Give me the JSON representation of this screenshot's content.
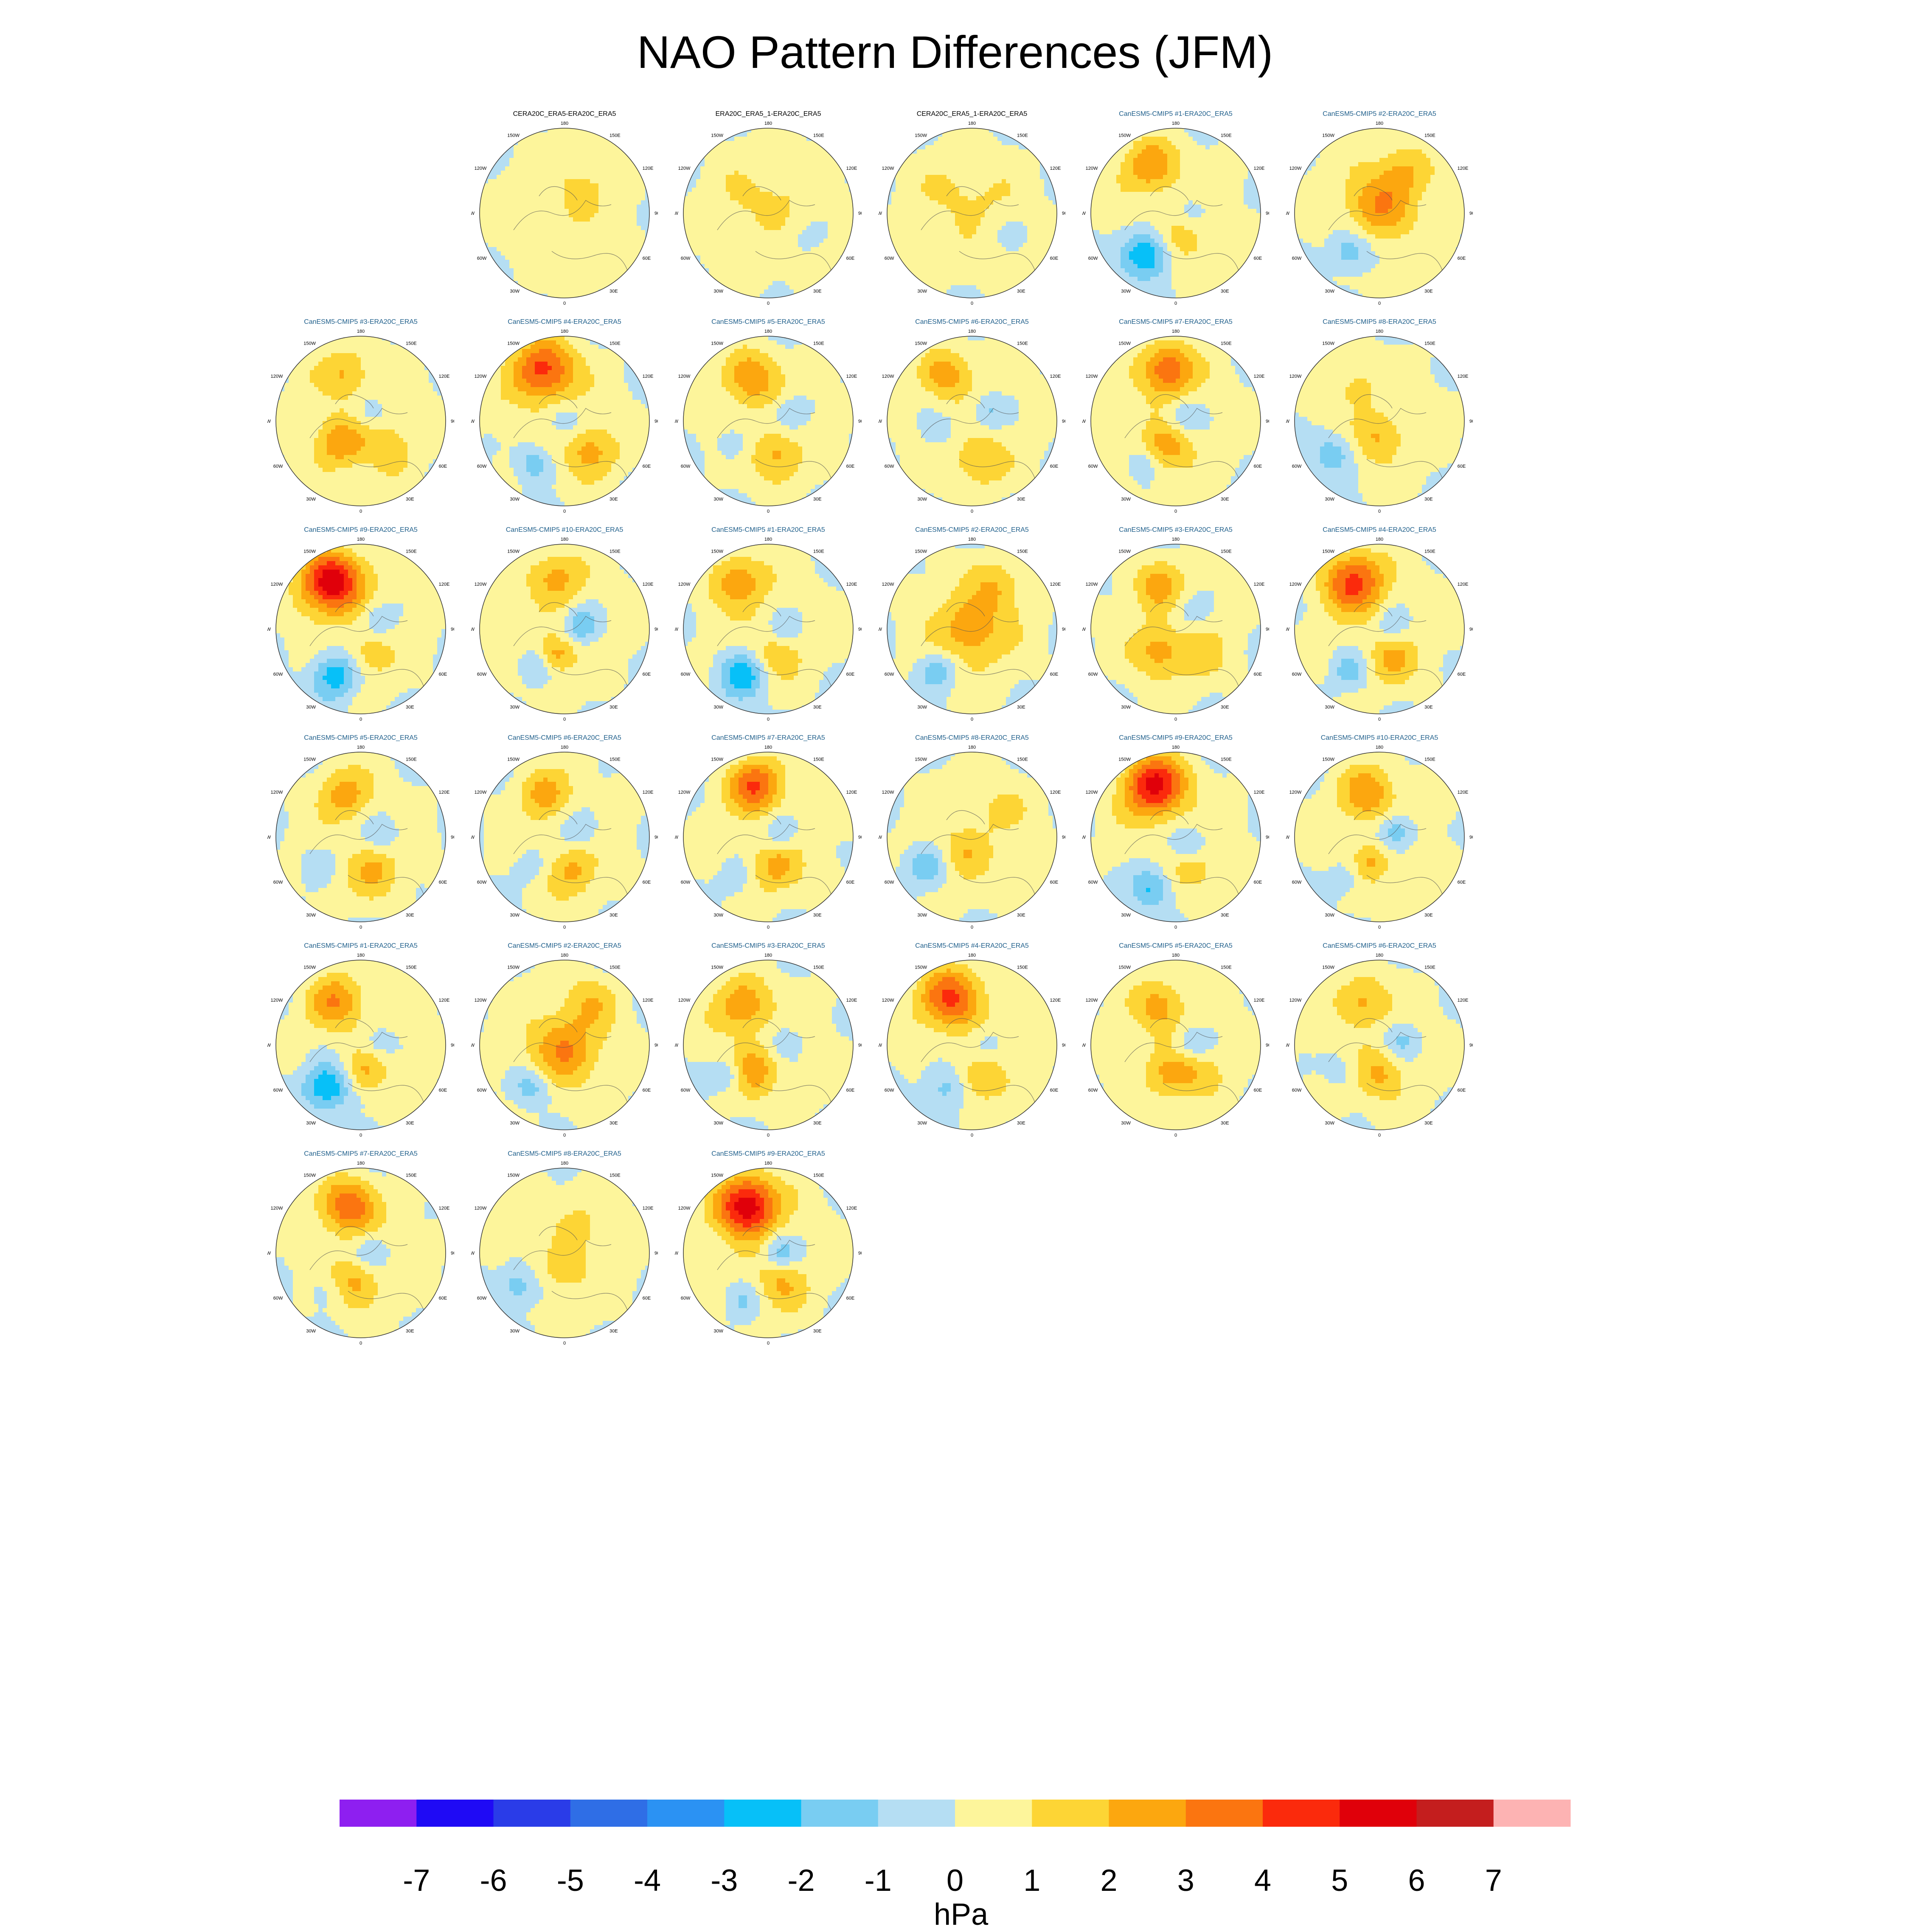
{
  "title": "NAO Pattern Differences (JFM)",
  "colorbar": {
    "unit": "hPa",
    "ticks": [
      "-7",
      "-6",
      "-5",
      "-4",
      "-3",
      "-2",
      "-1",
      "0",
      "1",
      "2",
      "3",
      "4",
      "5",
      "6",
      "7"
    ],
    "colors": [
      "#8e1ff0",
      "#1f0af5",
      "#2a3ce8",
      "#2f6ee6",
      "#2b92f3",
      "#07c0f8",
      "#79cdf2",
      "#b5def3",
      "#fdf59b",
      "#fdd535",
      "#fca70f",
      "#fb7510",
      "#fb2a0c",
      "#e0000a",
      "#c41e1e",
      "#fdb3b3"
    ]
  },
  "chart_data": {
    "type": "heatmap",
    "title": "NAO Pattern Differences (JFM)",
    "variable": "NAO pattern difference",
    "units": "hPa",
    "color_range": [
      -8,
      8
    ],
    "color_levels": [
      -7,
      -6,
      -5,
      -4,
      -3,
      -2,
      -1,
      0,
      1,
      2,
      3,
      4,
      5,
      6,
      7
    ],
    "projection": "North polar stereographic",
    "longitude_labels": [
      "180",
      "150E",
      "120E",
      "90E",
      "60E",
      "30E",
      "0",
      "30W",
      "60W",
      "90W",
      "120W",
      "150W"
    ],
    "panels": [
      {
        "title": "CERA20C_ERA5-ERA20C_ERA5",
        "kind": "obs",
        "blobs": [
          [
            0.2,
            -0.3,
            0.25,
            0.8
          ],
          [
            -0.3,
            0.1,
            0.22,
            0.6
          ],
          [
            0.1,
            0.45,
            0.18,
            0.5
          ]
        ]
      },
      {
        "title": "ERA20C_ERA5_1-ERA20C_ERA5",
        "kind": "obs",
        "blobs": [
          [
            0.1,
            -0.1,
            0.3,
            0.7
          ],
          [
            -0.35,
            -0.2,
            0.2,
            0.5
          ],
          [
            0.4,
            0.3,
            0.2,
            -0.6
          ]
        ]
      },
      {
        "title": "CERA20C_ERA5_1-ERA20C_ERA5",
        "kind": "obs",
        "blobs": [
          [
            0.1,
            -0.1,
            0.3,
            0.7
          ],
          [
            -0.3,
            -0.3,
            0.2,
            0.6
          ],
          [
            0.45,
            0.2,
            0.18,
            -0.6
          ]
        ]
      },
      {
        "title": "CanESM5-CMIP5 #1-ERA20C_ERA5",
        "kind": "model",
        "blobs": [
          [
            -0.3,
            -0.55,
            0.22,
            2.5
          ],
          [
            -0.35,
            0.5,
            0.2,
            -3.5
          ],
          [
            0.1,
            0.3,
            0.2,
            1.5
          ],
          [
            0.2,
            0.0,
            0.15,
            -1.2
          ]
        ]
      },
      {
        "title": "CanESM5-CMIP5 #2-ERA20C_ERA5",
        "kind": "model",
        "blobs": [
          [
            0.0,
            -0.1,
            0.28,
            2.5
          ],
          [
            -0.35,
            0.45,
            0.18,
            -2.2
          ],
          [
            0.3,
            -0.5,
            0.2,
            1.5
          ]
        ]
      },
      {
        "title": "CanESM5-CMIP5 #3-ERA20C_ERA5",
        "kind": "model",
        "blobs": [
          [
            -0.2,
            -0.55,
            0.2,
            1.8
          ],
          [
            -0.25,
            0.25,
            0.2,
            2.4
          ],
          [
            0.3,
            0.3,
            0.2,
            1.5
          ],
          [
            0.1,
            -0.1,
            0.15,
            -1.0
          ]
        ]
      },
      {
        "title": "CanESM5-CMIP5 #4-ERA20C_ERA5",
        "kind": "model",
        "blobs": [
          [
            -0.25,
            -0.6,
            0.26,
            4.0
          ],
          [
            0.3,
            0.35,
            0.2,
            2.2
          ],
          [
            -0.35,
            0.5,
            0.15,
            -2.0
          ],
          [
            0.0,
            0.0,
            0.15,
            -1.2
          ]
        ]
      },
      {
        "title": "CanESM5-CMIP5 #5-ERA20C_ERA5",
        "kind": "model",
        "blobs": [
          [
            -0.2,
            -0.5,
            0.22,
            2.5
          ],
          [
            0.1,
            0.4,
            0.2,
            2.0
          ],
          [
            0.25,
            -0.1,
            0.15,
            -1.5
          ],
          [
            -0.4,
            0.3,
            0.15,
            -1.2
          ]
        ]
      },
      {
        "title": "CanESM5-CMIP5 #6-ERA20C_ERA5",
        "kind": "model",
        "blobs": [
          [
            -0.3,
            -0.55,
            0.2,
            2.2
          ],
          [
            0.1,
            0.45,
            0.2,
            1.8
          ],
          [
            0.2,
            -0.1,
            0.15,
            -1.5
          ],
          [
            -0.4,
            0.1,
            0.15,
            -1.0
          ]
        ]
      },
      {
        "title": "CanESM5-CMIP5 #7-ERA20C_ERA5",
        "kind": "model",
        "blobs": [
          [
            -0.1,
            -0.6,
            0.22,
            3.5
          ],
          [
            -0.1,
            0.3,
            0.2,
            2.2
          ],
          [
            0.1,
            -0.05,
            0.15,
            -1.5
          ],
          [
            -0.4,
            0.5,
            0.15,
            -1.2
          ]
        ]
      },
      {
        "title": "CanESM5-CMIP5 #8-ERA20C_ERA5",
        "kind": "model",
        "blobs": [
          [
            -0.55,
            0.4,
            0.18,
            -2.0
          ],
          [
            0.0,
            0.2,
            0.2,
            1.8
          ],
          [
            -0.3,
            -0.4,
            0.2,
            1.0
          ]
        ]
      },
      {
        "title": "CanESM5-CMIP5 #9-ERA20C_ERA5",
        "kind": "model",
        "blobs": [
          [
            -0.35,
            -0.55,
            0.25,
            5.5
          ],
          [
            -0.3,
            0.55,
            0.2,
            -3.0
          ],
          [
            0.1,
            0.3,
            0.18,
            1.5
          ],
          [
            0.2,
            -0.1,
            0.15,
            -1.2
          ]
        ]
      },
      {
        "title": "CanESM5-CMIP5 #10-ERA20C_ERA5",
        "kind": "model",
        "blobs": [
          [
            -0.1,
            -0.6,
            0.22,
            2.0
          ],
          [
            0.2,
            -0.05,
            0.15,
            -2.2
          ],
          [
            -0.1,
            0.3,
            0.15,
            2.2
          ],
          [
            -0.35,
            0.45,
            0.15,
            -1.5
          ]
        ]
      },
      {
        "title": "CanESM5-CMIP5 #1-ERA20C_ERA5",
        "kind": "model",
        "blobs": [
          [
            -0.35,
            -0.55,
            0.22,
            2.5
          ],
          [
            -0.3,
            0.55,
            0.2,
            -3.0
          ],
          [
            0.1,
            0.3,
            0.2,
            1.5
          ],
          [
            0.2,
            0.0,
            0.15,
            -1.2
          ]
        ]
      },
      {
        "title": "CanESM5-CMIP5 #2-ERA20C_ERA5",
        "kind": "model",
        "blobs": [
          [
            0.0,
            0.0,
            0.28,
            2.4
          ],
          [
            -0.4,
            0.5,
            0.16,
            -2.0
          ],
          [
            0.3,
            -0.5,
            0.2,
            1.4
          ]
        ]
      },
      {
        "title": "CanESM5-CMIP5 #3-ERA20C_ERA5",
        "kind": "model",
        "blobs": [
          [
            -0.2,
            -0.5,
            0.2,
            2.0
          ],
          [
            -0.2,
            0.25,
            0.2,
            2.2
          ],
          [
            0.2,
            -0.2,
            0.15,
            -1.0
          ],
          [
            0.3,
            0.3,
            0.2,
            1.2
          ]
        ]
      },
      {
        "title": "CanESM5-CMIP5 #4-ERA20C_ERA5",
        "kind": "model",
        "blobs": [
          [
            -0.3,
            -0.55,
            0.25,
            4.0
          ],
          [
            -0.35,
            0.5,
            0.16,
            -1.8
          ],
          [
            0.15,
            0.35,
            0.2,
            1.8
          ],
          [
            0.15,
            -0.05,
            0.15,
            -1.2
          ]
        ]
      },
      {
        "title": "CanESM5-CMIP5 #5-ERA20C_ERA5",
        "kind": "model",
        "blobs": [
          [
            -0.2,
            -0.5,
            0.2,
            2.2
          ],
          [
            0.15,
            0.4,
            0.2,
            1.8
          ],
          [
            0.25,
            -0.05,
            0.15,
            -1.4
          ],
          [
            -0.5,
            0.3,
            0.15,
            -1.0
          ]
        ]
      },
      {
        "title": "CanESM5-CMIP5 #6-ERA20C_ERA5",
        "kind": "model",
        "blobs": [
          [
            -0.25,
            -0.5,
            0.2,
            2.0
          ],
          [
            0.1,
            0.4,
            0.2,
            1.8
          ],
          [
            0.2,
            -0.1,
            0.15,
            -1.5
          ],
          [
            -0.4,
            0.35,
            0.15,
            -1.0
          ]
        ]
      },
      {
        "title": "CanESM5-CMIP5 #7-ERA20C_ERA5",
        "kind": "model",
        "blobs": [
          [
            -0.15,
            -0.6,
            0.22,
            3.6
          ],
          [
            0.1,
            0.35,
            0.2,
            2.0
          ],
          [
            0.15,
            -0.05,
            0.15,
            -1.5
          ],
          [
            -0.4,
            0.5,
            0.15,
            -1.2
          ]
        ]
      },
      {
        "title": "CanESM5-CMIP5 #8-ERA20C_ERA5",
        "kind": "model",
        "blobs": [
          [
            -0.55,
            0.35,
            0.18,
            -2.0
          ],
          [
            -0.1,
            0.2,
            0.2,
            1.5
          ],
          [
            0.3,
            -0.3,
            0.2,
            1.0
          ]
        ]
      },
      {
        "title": "CanESM5-CMIP5 #9-ERA20C_ERA5",
        "kind": "model",
        "blobs": [
          [
            -0.25,
            -0.6,
            0.25,
            5.0
          ],
          [
            -0.3,
            0.6,
            0.18,
            -2.5
          ],
          [
            0.15,
            0.1,
            0.15,
            -1.8
          ],
          [
            0.2,
            0.35,
            0.18,
            1.5
          ]
        ]
      },
      {
        "title": "CanESM5-CMIP5 #10-ERA20C_ERA5",
        "kind": "model",
        "blobs": [
          [
            -0.15,
            -0.5,
            0.22,
            2.4
          ],
          [
            0.2,
            -0.05,
            0.15,
            -2.2
          ],
          [
            -0.1,
            0.3,
            0.15,
            1.8
          ],
          [
            -0.4,
            0.5,
            0.15,
            -1.2
          ]
        ]
      },
      {
        "title": "CanESM5-CMIP5 #1-ERA20C_ERA5",
        "kind": "model",
        "blobs": [
          [
            -0.3,
            -0.5,
            0.22,
            2.5
          ],
          [
            -0.4,
            0.5,
            0.2,
            -3.5
          ],
          [
            0.05,
            0.3,
            0.18,
            1.8
          ],
          [
            0.2,
            0.0,
            0.15,
            -1.2
          ]
        ]
      },
      {
        "title": "CanESM5-CMIP5 #2-ERA20C_ERA5",
        "kind": "model",
        "blobs": [
          [
            0.0,
            0.05,
            0.28,
            2.6
          ],
          [
            -0.4,
            0.5,
            0.16,
            -2.0
          ],
          [
            0.3,
            -0.5,
            0.2,
            1.4
          ]
        ]
      },
      {
        "title": "CanESM5-CMIP5 #3-ERA20C_ERA5",
        "kind": "model",
        "blobs": [
          [
            -0.3,
            -0.45,
            0.22,
            2.5
          ],
          [
            -0.2,
            0.3,
            0.2,
            2.4
          ],
          [
            0.2,
            -0.05,
            0.15,
            -1.2
          ],
          [
            -0.45,
            0.35,
            0.15,
            -1.8
          ]
        ]
      },
      {
        "title": "CanESM5-CMIP5 #4-ERA20C_ERA5",
        "kind": "model",
        "blobs": [
          [
            -0.25,
            -0.55,
            0.25,
            3.8
          ],
          [
            -0.3,
            0.5,
            0.2,
            -2.0
          ],
          [
            0.1,
            0.4,
            0.2,
            2.0
          ],
          [
            0.15,
            0.0,
            0.15,
            -1.2
          ]
        ]
      },
      {
        "title": "CanESM5-CMIP5 #5-ERA20C_ERA5",
        "kind": "model",
        "blobs": [
          [
            -0.2,
            -0.45,
            0.2,
            2.2
          ],
          [
            -0.05,
            0.35,
            0.2,
            2.0
          ],
          [
            0.2,
            0.0,
            0.15,
            -1.5
          ],
          [
            0.3,
            0.3,
            0.18,
            1.2
          ]
        ]
      },
      {
        "title": "CanESM5-CMIP5 #6-ERA20C_ERA5",
        "kind": "model",
        "blobs": [
          [
            -0.2,
            -0.5,
            0.2,
            2.0
          ],
          [
            0.0,
            0.35,
            0.2,
            1.8
          ],
          [
            0.25,
            -0.05,
            0.15,
            -1.6
          ],
          [
            -0.45,
            0.3,
            0.15,
            -0.9
          ]
        ]
      },
      {
        "title": "CanESM5-CMIP5 #7-ERA20C_ERA5",
        "kind": "model",
        "blobs": [
          [
            -0.15,
            -0.55,
            0.22,
            3.5
          ],
          [
            -0.05,
            0.35,
            0.2,
            2.0
          ],
          [
            0.1,
            0.0,
            0.15,
            -1.5
          ],
          [
            -0.4,
            0.45,
            0.15,
            -1.0
          ]
        ]
      },
      {
        "title": "CanESM5-CMIP5 #8-ERA20C_ERA5",
        "kind": "model",
        "blobs": [
          [
            -0.55,
            0.4,
            0.18,
            -2.0
          ],
          [
            0.0,
            0.2,
            0.18,
            1.5
          ],
          [
            0.2,
            -0.3,
            0.2,
            0.9
          ]
        ]
      },
      {
        "title": "CanESM5-CMIP5 #9-ERA20C_ERA5",
        "kind": "model",
        "blobs": [
          [
            -0.25,
            -0.55,
            0.25,
            5.5
          ],
          [
            0.15,
            0.35,
            0.2,
            1.8
          ],
          [
            0.15,
            0.0,
            0.15,
            -2.0
          ],
          [
            -0.3,
            0.55,
            0.15,
            -1.4
          ]
        ]
      }
    ]
  }
}
